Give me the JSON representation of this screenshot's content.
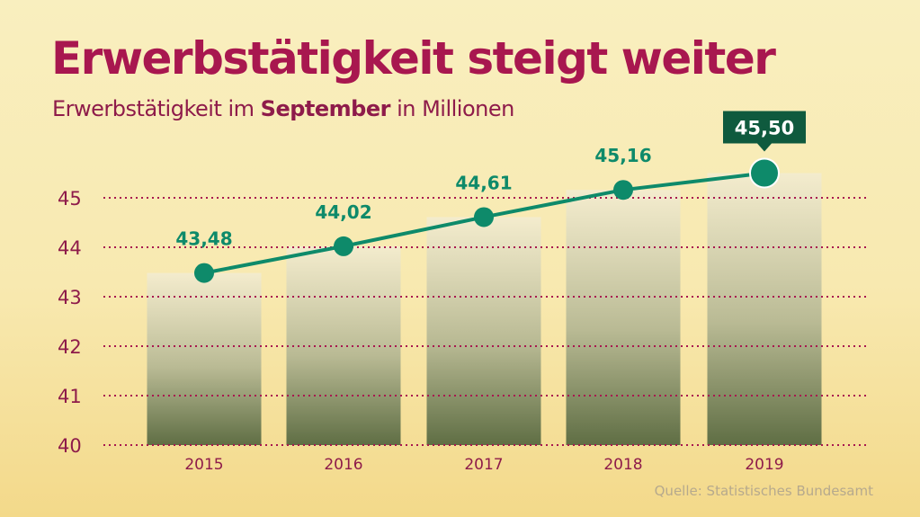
{
  "chart_data": {
    "type": "bar",
    "title": "Erwerbstätigkeit steigt weiter",
    "subtitle_parts": [
      "Erwerbstätigkeit im ",
      "September",
      " in Millionen"
    ],
    "categories": [
      "2015",
      "2016",
      "2017",
      "2018",
      "2019"
    ],
    "values": [
      43.48,
      44.02,
      44.61,
      45.16,
      45.5
    ],
    "value_labels": [
      "43,48",
      "44,02",
      "44,61",
      "45,16",
      "45,50"
    ],
    "highlight_index": 4,
    "ylim": [
      40,
      45.9
    ],
    "yticks": [
      40,
      41,
      42,
      43,
      44,
      45
    ],
    "grid": true,
    "overlay": "line",
    "source": "Quelle: Statistisches Bundesamt"
  },
  "colors": {
    "title": "#a8174f",
    "axis_text": "#8e1b4a",
    "line": "#0e8a6a",
    "highlight_box": "#0f5a3e",
    "grid": "#a8174f",
    "bar_top": "#f3ecd0",
    "bar_bottom": "#5f6e44"
  }
}
